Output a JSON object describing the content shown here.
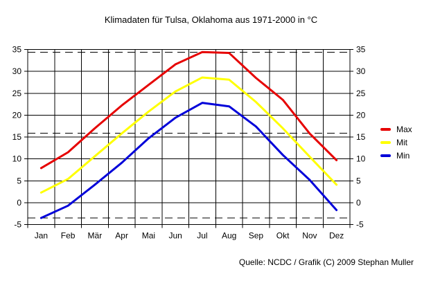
{
  "chart_data": {
    "type": "line",
    "title": "Klimadaten für Tulsa, Oklahoma aus 1971-2000 in °C",
    "xlabel": "",
    "ylabel": "",
    "unit": "°C",
    "categories": [
      "Jan",
      "Feb",
      "Mär",
      "Apr",
      "Mai",
      "Jun",
      "Jul",
      "Aug",
      "Sep",
      "Okt",
      "Nov",
      "Dez"
    ],
    "series": [
      {
        "name": "Max",
        "color": "#e60000",
        "values": [
          7.9,
          11.5,
          17.0,
          22.2,
          26.9,
          31.6,
          34.4,
          34.2,
          28.5,
          23.5,
          15.8,
          9.7
        ]
      },
      {
        "name": "Mit",
        "color": "#ffff00",
        "values": [
          2.3,
          5.4,
          10.6,
          15.8,
          20.8,
          25.4,
          28.6,
          28.1,
          23.0,
          17.0,
          10.5,
          4.1
        ]
      },
      {
        "name": "Min",
        "color": "#0000d9",
        "values": [
          -3.5,
          -0.7,
          4.1,
          9.1,
          14.7,
          19.4,
          22.8,
          22.0,
          17.4,
          10.9,
          5.2,
          -1.7
        ]
      }
    ],
    "ylim": [
      -5,
      35
    ],
    "y_ticks": [
      -5,
      0,
      5,
      10,
      15,
      20,
      25,
      30,
      35
    ],
    "reference_lines_dashed": [
      34.4,
      15.9,
      -3.5
    ],
    "grid": "on",
    "legend_position": "right",
    "line_width": 3
  },
  "footer": {
    "source_text": "Quelle: NCDC / Grafik (C) 2009 Stephan Muller"
  }
}
